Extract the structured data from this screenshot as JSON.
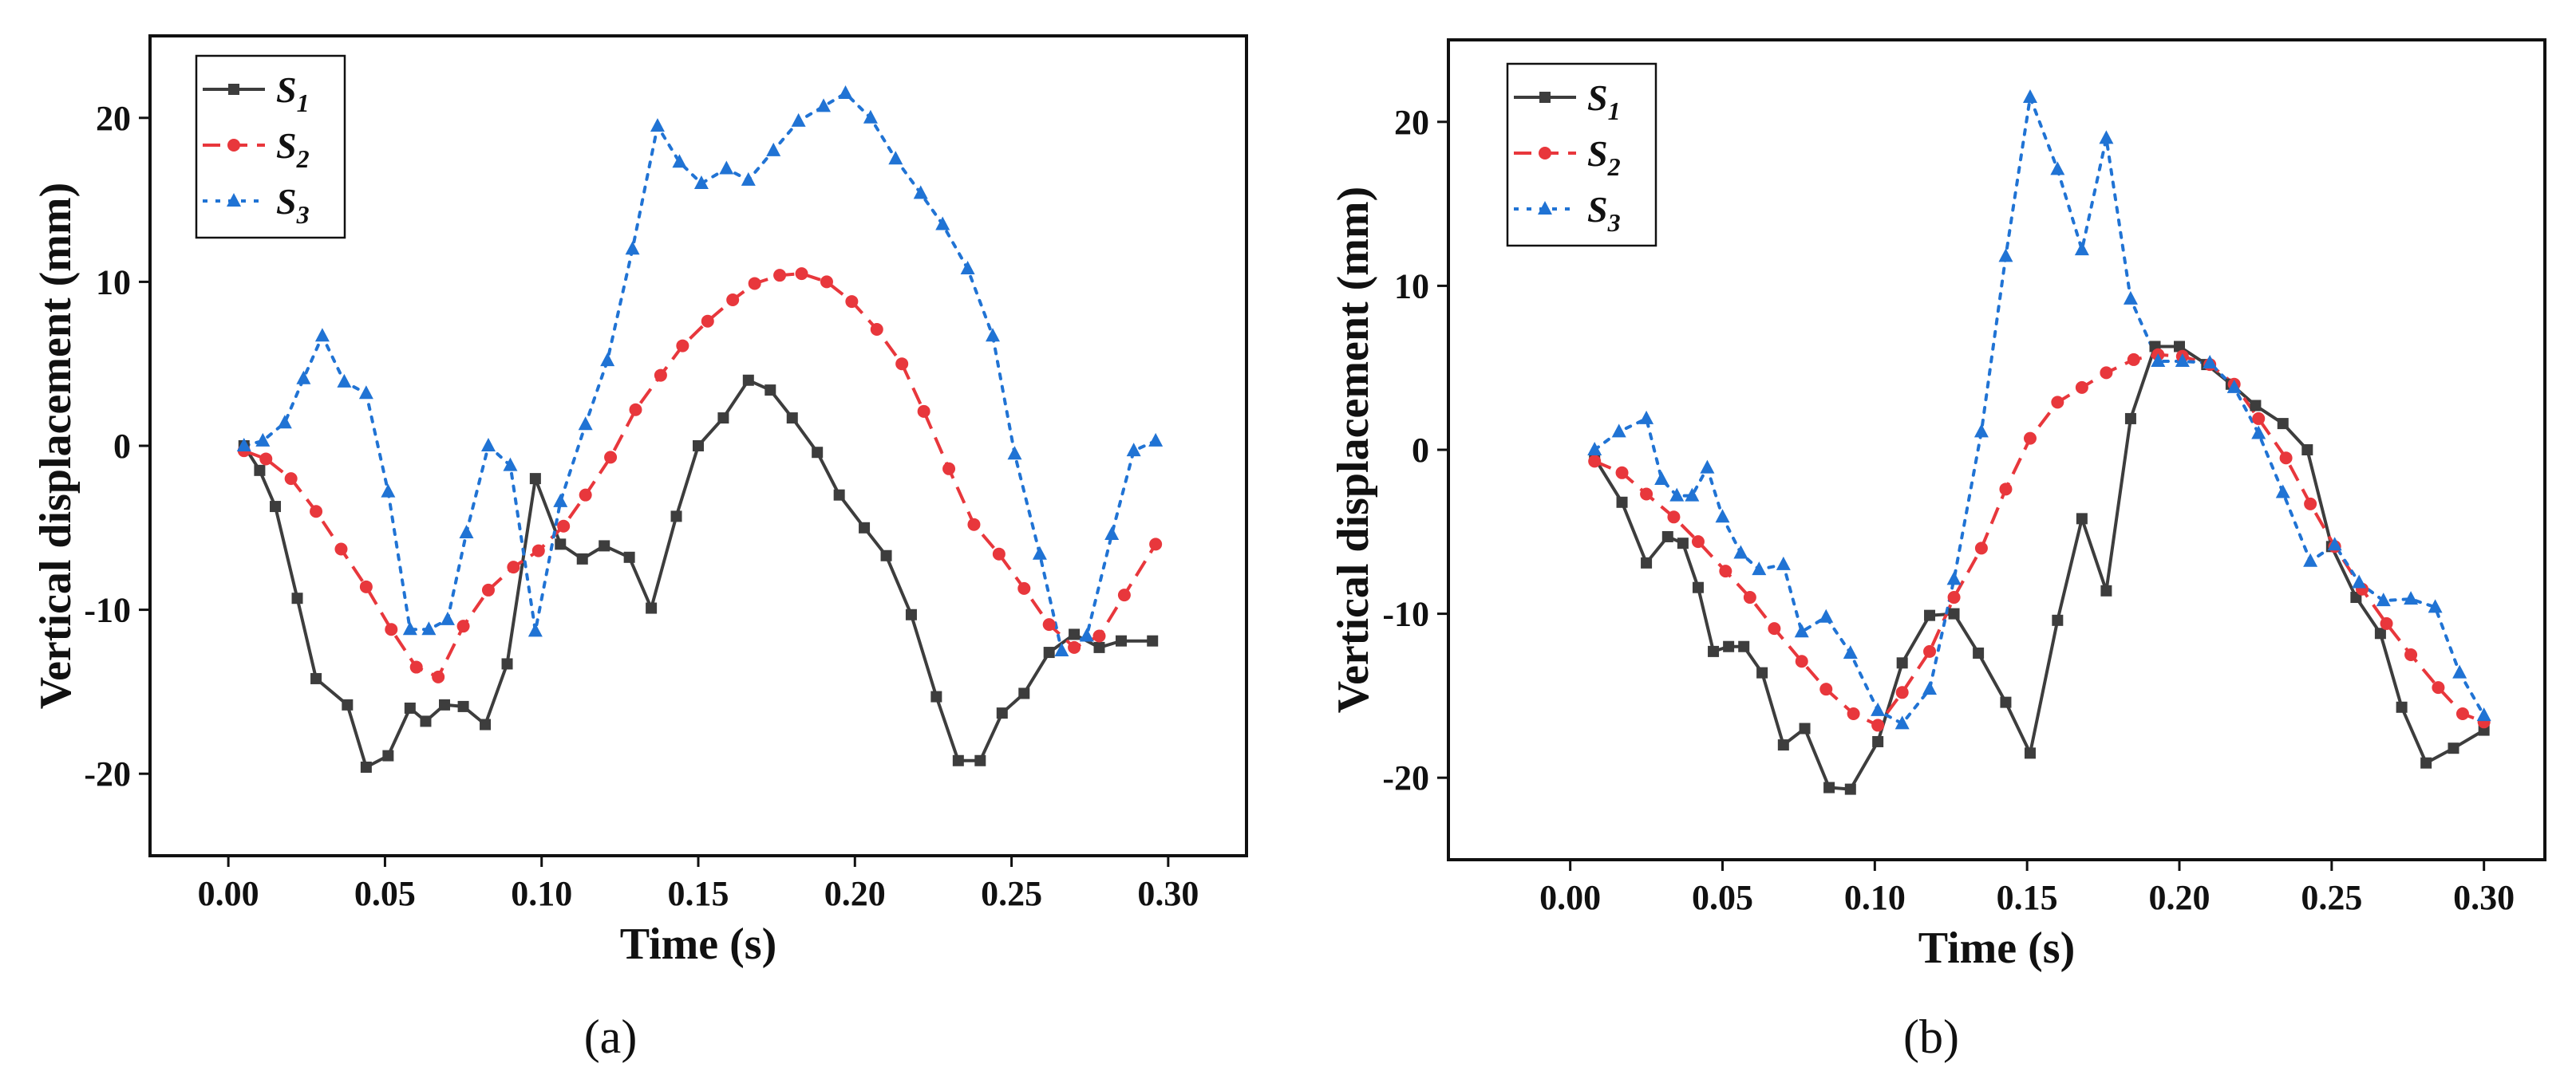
{
  "chart_data": [
    {
      "type": "line",
      "panel_label": "(a)",
      "xlabel": "Time (s)",
      "ylabel": "Vertical displacement (mm)",
      "xlim": [
        -0.025,
        0.325
      ],
      "ylim": [
        -25,
        25
      ],
      "xticks": [
        0.0,
        0.05,
        0.1,
        0.15,
        0.2,
        0.25,
        0.3
      ],
      "xtick_labels": [
        "0.00",
        "0.05",
        "0.10",
        "0.15",
        "0.20",
        "0.25",
        "0.30"
      ],
      "yticks": [
        -20,
        -10,
        0,
        10,
        20
      ],
      "ytick_labels": [
        "-20",
        "-10",
        "0",
        "10",
        "20"
      ],
      "legend_position": "top-left",
      "series": [
        {
          "name": "S",
          "subscript": "1",
          "color": "#3d3d3d",
          "marker": "square",
          "dash": "solid",
          "x": [
            0.005,
            0.01,
            0.015,
            0.022,
            0.028,
            0.038,
            0.044,
            0.051,
            0.058,
            0.063,
            0.069,
            0.075,
            0.082,
            0.089,
            0.098,
            0.106,
            0.113,
            0.12,
            0.128,
            0.135,
            0.143,
            0.15,
            0.158,
            0.166,
            0.173,
            0.18,
            0.188,
            0.195,
            0.203,
            0.21,
            0.218,
            0.226,
            0.233,
            0.24,
            0.247,
            0.254,
            0.262,
            0.27,
            0.278,
            0.285,
            0.295
          ],
          "y": [
            0,
            -1.5,
            -3.7,
            -9.3,
            -14.2,
            -15.8,
            -19.6,
            -18.9,
            -16.0,
            -16.8,
            -15.8,
            -15.9,
            -17.0,
            -13.3,
            -2.0,
            -6.0,
            -6.9,
            -6.1,
            -6.8,
            -9.9,
            -4.3,
            0,
            1.7,
            4.0,
            3.4,
            1.7,
            -0.4,
            -3.0,
            -5.0,
            -6.7,
            -10.3,
            -15.3,
            -19.2,
            -19.2,
            -16.3,
            -15.1,
            -12.6,
            -11.5,
            -12.3,
            -11.9,
            -11.9
          ]
        },
        {
          "name": "S",
          "subscript": "2",
          "color": "#e8373c",
          "marker": "circle",
          "dash": "dashed",
          "x": [
            0.005,
            0.012,
            0.02,
            0.028,
            0.036,
            0.044,
            0.052,
            0.06,
            0.067,
            0.075,
            0.083,
            0.091,
            0.099,
            0.107,
            0.114,
            0.122,
            0.13,
            0.138,
            0.145,
            0.153,
            0.161,
            0.168,
            0.176,
            0.183,
            0.191,
            0.199,
            0.207,
            0.215,
            0.222,
            0.23,
            0.238,
            0.246,
            0.254,
            0.262,
            0.27,
            0.278,
            0.286,
            0.296
          ],
          "y": [
            -0.3,
            -0.8,
            -2.0,
            -4.0,
            -6.3,
            -8.6,
            -11.2,
            -13.5,
            -14.1,
            -11.0,
            -8.8,
            -7.4,
            -6.4,
            -4.9,
            -3.0,
            -0.7,
            2.2,
            4.3,
            6.1,
            7.6,
            8.9,
            9.9,
            10.4,
            10.5,
            10.0,
            8.8,
            7.1,
            5.0,
            2.1,
            -1.4,
            -4.8,
            -6.6,
            -8.7,
            -10.9,
            -12.3,
            -11.6,
            -9.1,
            -6.0
          ]
        },
        {
          "name": "S",
          "subscript": "3",
          "color": "#2073d4",
          "marker": "triangle",
          "dash": "dotted",
          "x": [
            0.005,
            0.011,
            0.018,
            0.024,
            0.03,
            0.037,
            0.044,
            0.051,
            0.058,
            0.064,
            0.07,
            0.076,
            0.083,
            0.09,
            0.098,
            0.106,
            0.114,
            0.121,
            0.129,
            0.137,
            0.144,
            0.151,
            0.159,
            0.166,
            0.174,
            0.182,
            0.19,
            0.197,
            0.205,
            0.213,
            0.221,
            0.228,
            0.236,
            0.244,
            0.251,
            0.259,
            0.266,
            0.274,
            0.282,
            0.289,
            0.296
          ],
          "y": [
            0,
            0.3,
            1.4,
            4.1,
            6.7,
            3.9,
            3.2,
            -2.8,
            -11.2,
            -11.2,
            -10.6,
            -5.3,
            0,
            -1.2,
            -11.3,
            -3.4,
            1.3,
            5.2,
            12.0,
            19.5,
            17.3,
            16.0,
            16.9,
            16.2,
            18.0,
            19.8,
            20.7,
            21.5,
            20.0,
            17.5,
            15.4,
            13.5,
            10.8,
            6.7,
            -0.5,
            -6.6,
            -12.5,
            -11.6,
            -5.4,
            -0.3,
            0.3
          ]
        }
      ]
    },
    {
      "type": "line",
      "panel_label": "(b)",
      "xlabel": "Time (s)",
      "ylabel": "Vertical displacement (mm)",
      "xlim": [
        -0.04,
        0.32
      ],
      "ylim": [
        -25,
        25
      ],
      "xticks": [
        0.0,
        0.05,
        0.1,
        0.15,
        0.2,
        0.25,
        0.3
      ],
      "xtick_labels": [
        "0.00",
        "0.05",
        "0.10",
        "0.15",
        "0.20",
        "0.25",
        "0.30"
      ],
      "yticks": [
        -20,
        -10,
        0,
        10,
        20
      ],
      "ytick_labels": [
        "-20",
        "-10",
        "0",
        "10",
        "20"
      ],
      "legend_position": "top-left",
      "series": [
        {
          "name": "S",
          "subscript": "1",
          "color": "#3d3d3d",
          "marker": "square",
          "dash": "solid",
          "x": [
            0.008,
            0.017,
            0.025,
            0.032,
            0.037,
            0.042,
            0.047,
            0.052,
            0.057,
            0.063,
            0.07,
            0.077,
            0.085,
            0.092,
            0.101,
            0.109,
            0.118,
            0.126,
            0.134,
            0.143,
            0.151,
            0.16,
            0.168,
            0.176,
            0.184,
            0.192,
            0.2,
            0.209,
            0.217,
            0.225,
            0.234,
            0.242,
            0.25,
            0.258,
            0.266,
            0.273,
            0.281,
            0.29,
            0.3
          ],
          "y": [
            -0.5,
            -3.2,
            -6.9,
            -5.3,
            -5.7,
            -8.4,
            -12.3,
            -12.0,
            -12.0,
            -13.6,
            -18.0,
            -17.0,
            -20.6,
            -20.7,
            -17.8,
            -13.0,
            -10.1,
            -10.0,
            -12.4,
            -15.4,
            -18.5,
            -10.4,
            -4.2,
            -8.6,
            1.9,
            6.3,
            6.3,
            5.2,
            4.0,
            2.7,
            1.6,
            0,
            -5.9,
            -9.0,
            -11.2,
            -15.7,
            -19.1,
            -18.2,
            -17.1
          ]
        },
        {
          "name": "S",
          "subscript": "2",
          "color": "#e8373c",
          "marker": "circle",
          "dash": "dashed",
          "x": [
            0.008,
            0.017,
            0.025,
            0.034,
            0.042,
            0.051,
            0.059,
            0.067,
            0.076,
            0.084,
            0.093,
            0.101,
            0.109,
            0.118,
            0.126,
            0.135,
            0.143,
            0.151,
            0.16,
            0.168,
            0.176,
            0.185,
            0.193,
            0.201,
            0.21,
            0.218,
            0.226,
            0.235,
            0.243,
            0.251,
            0.26,
            0.268,
            0.276,
            0.285,
            0.293,
            0.3
          ],
          "y": [
            -0.7,
            -1.4,
            -2.7,
            -4.1,
            -5.6,
            -7.4,
            -9.0,
            -10.9,
            -12.9,
            -14.6,
            -16.1,
            -16.8,
            -14.8,
            -12.3,
            -9.0,
            -6.0,
            -2.4,
            0.7,
            2.9,
            3.8,
            4.7,
            5.5,
            5.8,
            5.7,
            5.2,
            4.0,
            1.9,
            -0.5,
            -3.3,
            -5.9,
            -8.5,
            -10.6,
            -12.5,
            -14.5,
            -16.1,
            -16.6
          ]
        },
        {
          "name": "S",
          "subscript": "3",
          "color": "#2073d4",
          "marker": "triangle",
          "dash": "dotted",
          "x": [
            0.008,
            0.016,
            0.025,
            0.03,
            0.035,
            0.04,
            0.045,
            0.05,
            0.056,
            0.062,
            0.07,
            0.076,
            0.084,
            0.092,
            0.101,
            0.109,
            0.118,
            0.126,
            0.135,
            0.143,
            0.151,
            0.16,
            0.168,
            0.176,
            0.184,
            0.193,
            0.201,
            0.21,
            0.218,
            0.226,
            0.234,
            0.243,
            0.251,
            0.259,
            0.267,
            0.276,
            0.284,
            0.292,
            0.3
          ],
          "y": [
            0,
            1.1,
            1.9,
            -1.8,
            -2.8,
            -2.8,
            -1.1,
            -4.1,
            -6.3,
            -7.3,
            -7.0,
            -11.1,
            -10.2,
            -12.4,
            -15.9,
            -16.7,
            -14.6,
            -7.9,
            1.1,
            11.8,
            21.5,
            17.1,
            12.2,
            19.0,
            9.2,
            5.4,
            5.4,
            5.3,
            3.8,
            1.0,
            -2.6,
            -6.8,
            -5.8,
            -8.1,
            -9.2,
            -9.1,
            -9.6,
            -13.6,
            -16.2
          ]
        }
      ]
    }
  ]
}
